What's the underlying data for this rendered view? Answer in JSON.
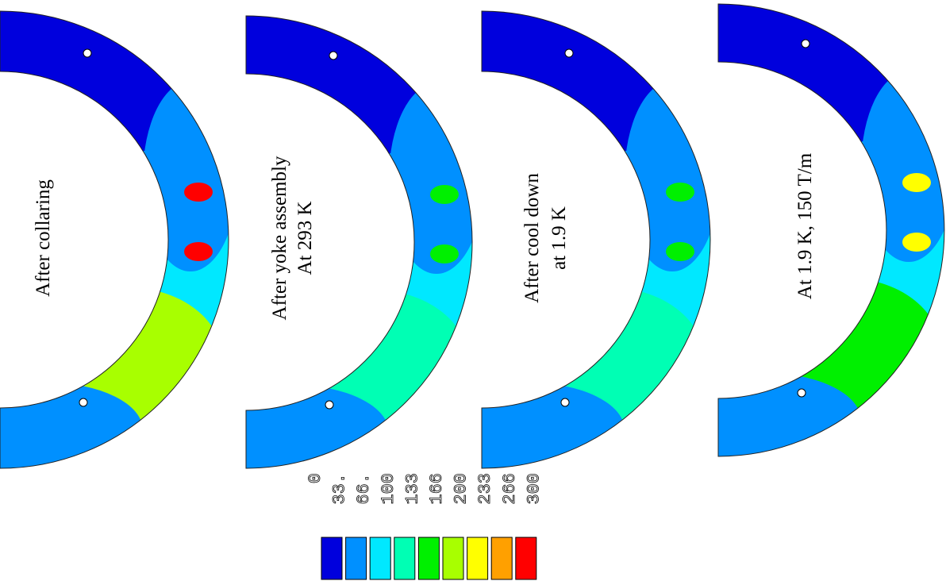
{
  "panels": [
    {
      "lines": [
        "After collaring"
      ]
    },
    {
      "lines": [
        "After yoke assembly",
        "At 293 K"
      ]
    },
    {
      "lines": [
        "After cool down",
        "at 1.9 K"
      ]
    },
    {
      "lines": [
        "At 1.9 K, 150 T/m"
      ]
    }
  ],
  "legend": {
    "labels": [
      "0",
      "33.",
      "66.",
      "100",
      "133",
      "166",
      "200",
      "233",
      "266",
      "300"
    ]
  }
}
